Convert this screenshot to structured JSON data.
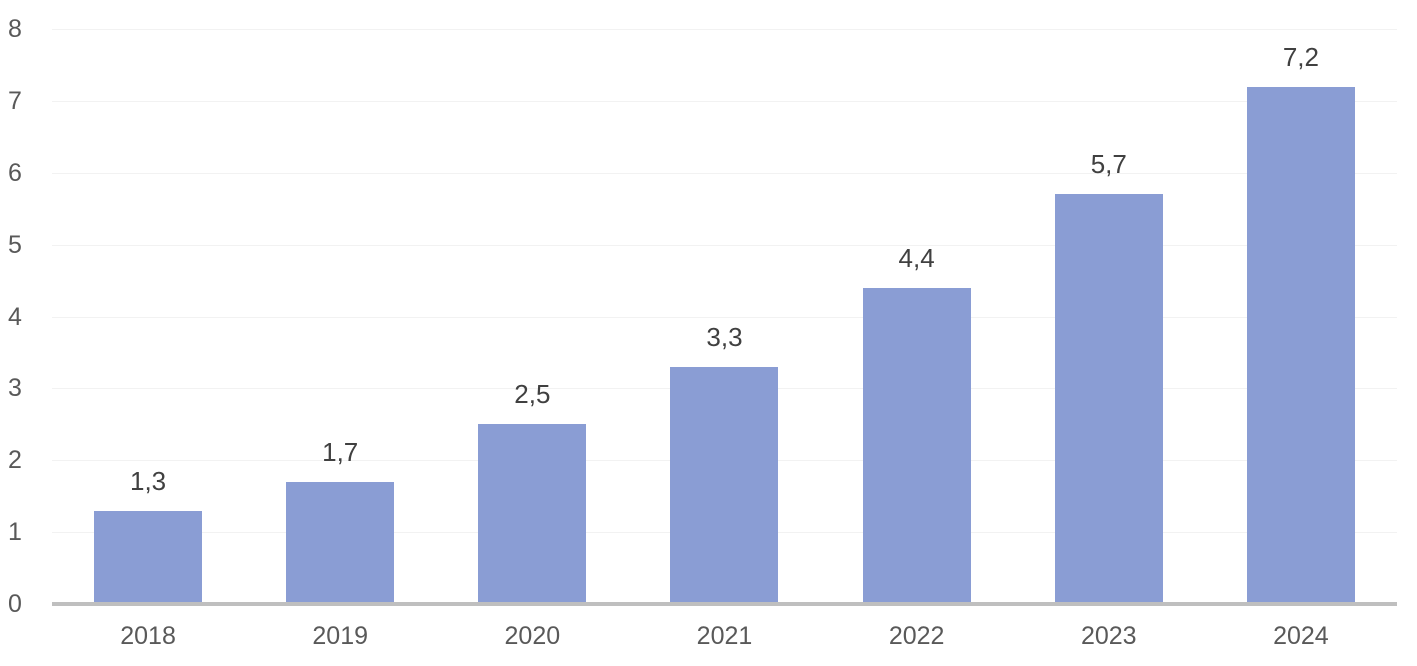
{
  "chart_data": {
    "type": "bar",
    "title": "",
    "xlabel": "",
    "ylabel": "",
    "categories": [
      "2018",
      "2019",
      "2020",
      "2021",
      "2022",
      "2023",
      "2024"
    ],
    "values": [
      1.3,
      1.7,
      2.5,
      3.3,
      4.4,
      5.7,
      7.2
    ],
    "data_labels": [
      "1,3",
      "1,7",
      "2,5",
      "3,3",
      "4,4",
      "5,7",
      "7,2"
    ],
    "decimal_separator": ",",
    "ylim": [
      0,
      8
    ],
    "y_ticks": [
      0,
      1,
      2,
      3,
      4,
      5,
      6,
      7,
      8
    ],
    "grid": true,
    "legend": false,
    "colors": {
      "bar_fill": "#8A9DD4",
      "gridline": "#F2F2F2",
      "axis_line": "#BFBFBF",
      "tick_label": "#595959",
      "data_label": "#404040",
      "background": "#FFFFFF"
    }
  }
}
